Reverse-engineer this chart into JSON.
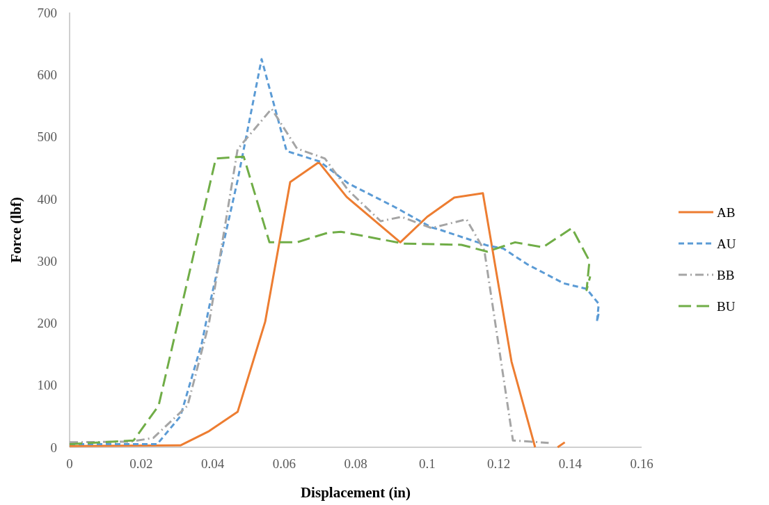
{
  "chart_data": {
    "type": "line",
    "xlabel": "Displacement (in)",
    "ylabel": "Force (lbf)",
    "xlim": [
      0,
      0.16
    ],
    "xticks": [
      0,
      0.02,
      0.04,
      0.06,
      0.08,
      0.1,
      0.12,
      0.14,
      0.16
    ],
    "ylim": [
      0,
      700
    ],
    "yticks": [
      0,
      100,
      200,
      300,
      400,
      500,
      600,
      700
    ],
    "grid": false,
    "legend": "right",
    "series": [
      {
        "name": "AB",
        "color": "#ed7d31",
        "line_style": "solid",
        "x": [
          0,
          0.031,
          0.039,
          0.047,
          0.0547,
          0.0617,
          0.0697,
          0.0775,
          0.0925,
          0.1,
          0.1076,
          0.1156,
          0.1236,
          0.1302,
          null,
          0.1365,
          0.1385
        ],
        "values": [
          2,
          3,
          26,
          57,
          202,
          427,
          459,
          403,
          330,
          371,
          402,
          409,
          138,
          0,
          null,
          0,
          8
        ]
      },
      {
        "name": "AU",
        "color": "#5b9bd5",
        "line_style": "dashed",
        "x": [
          0,
          0.02,
          0.0245,
          0.031,
          0.037,
          0.039,
          0.047,
          0.0537,
          0.0607,
          0.07,
          0.0779,
          0.0909,
          0.1012,
          0.1037,
          0.1168,
          0.1213,
          0.1279,
          0.1382,
          0.1446,
          0.148,
          0.1475,
          0.148
        ],
        "values": [
          5,
          5,
          5,
          50,
          168,
          225,
          430,
          625,
          477,
          460,
          425,
          387,
          354,
          350,
          325,
          320,
          295,
          264,
          255,
          231,
          202,
          216
        ]
      },
      {
        "name": "BB",
        "color": "#a5a5a5",
        "line_style": "dashdot",
        "x": [
          0,
          0.017,
          0.0234,
          0.033,
          0.039,
          0.047,
          0.0565,
          0.0636,
          0.0714,
          0.0779,
          0.087,
          0.0928,
          0.1012,
          0.111,
          0.116,
          0.124,
          0.134
        ],
        "values": [
          8,
          9,
          15,
          67,
          200,
          480,
          545,
          481,
          465,
          414,
          364,
          371,
          353,
          367,
          317,
          11,
          7
        ]
      },
      {
        "name": "BU",
        "color": "#70ad47",
        "line_style": "longdash",
        "x": [
          0,
          0.0179,
          0.0249,
          0.0409,
          0.0487,
          0.0559,
          0.0636,
          0.072,
          0.0759,
          0.0934,
          0.1096,
          0.1168,
          0.1246,
          0.1324,
          0.1405,
          0.1454,
          0.1446,
          0.1456
        ],
        "values": [
          5,
          11,
          67,
          465,
          468,
          330,
          330,
          345,
          347,
          328,
          326,
          315,
          330,
          322,
          353,
          300,
          253,
          275
        ]
      }
    ]
  }
}
